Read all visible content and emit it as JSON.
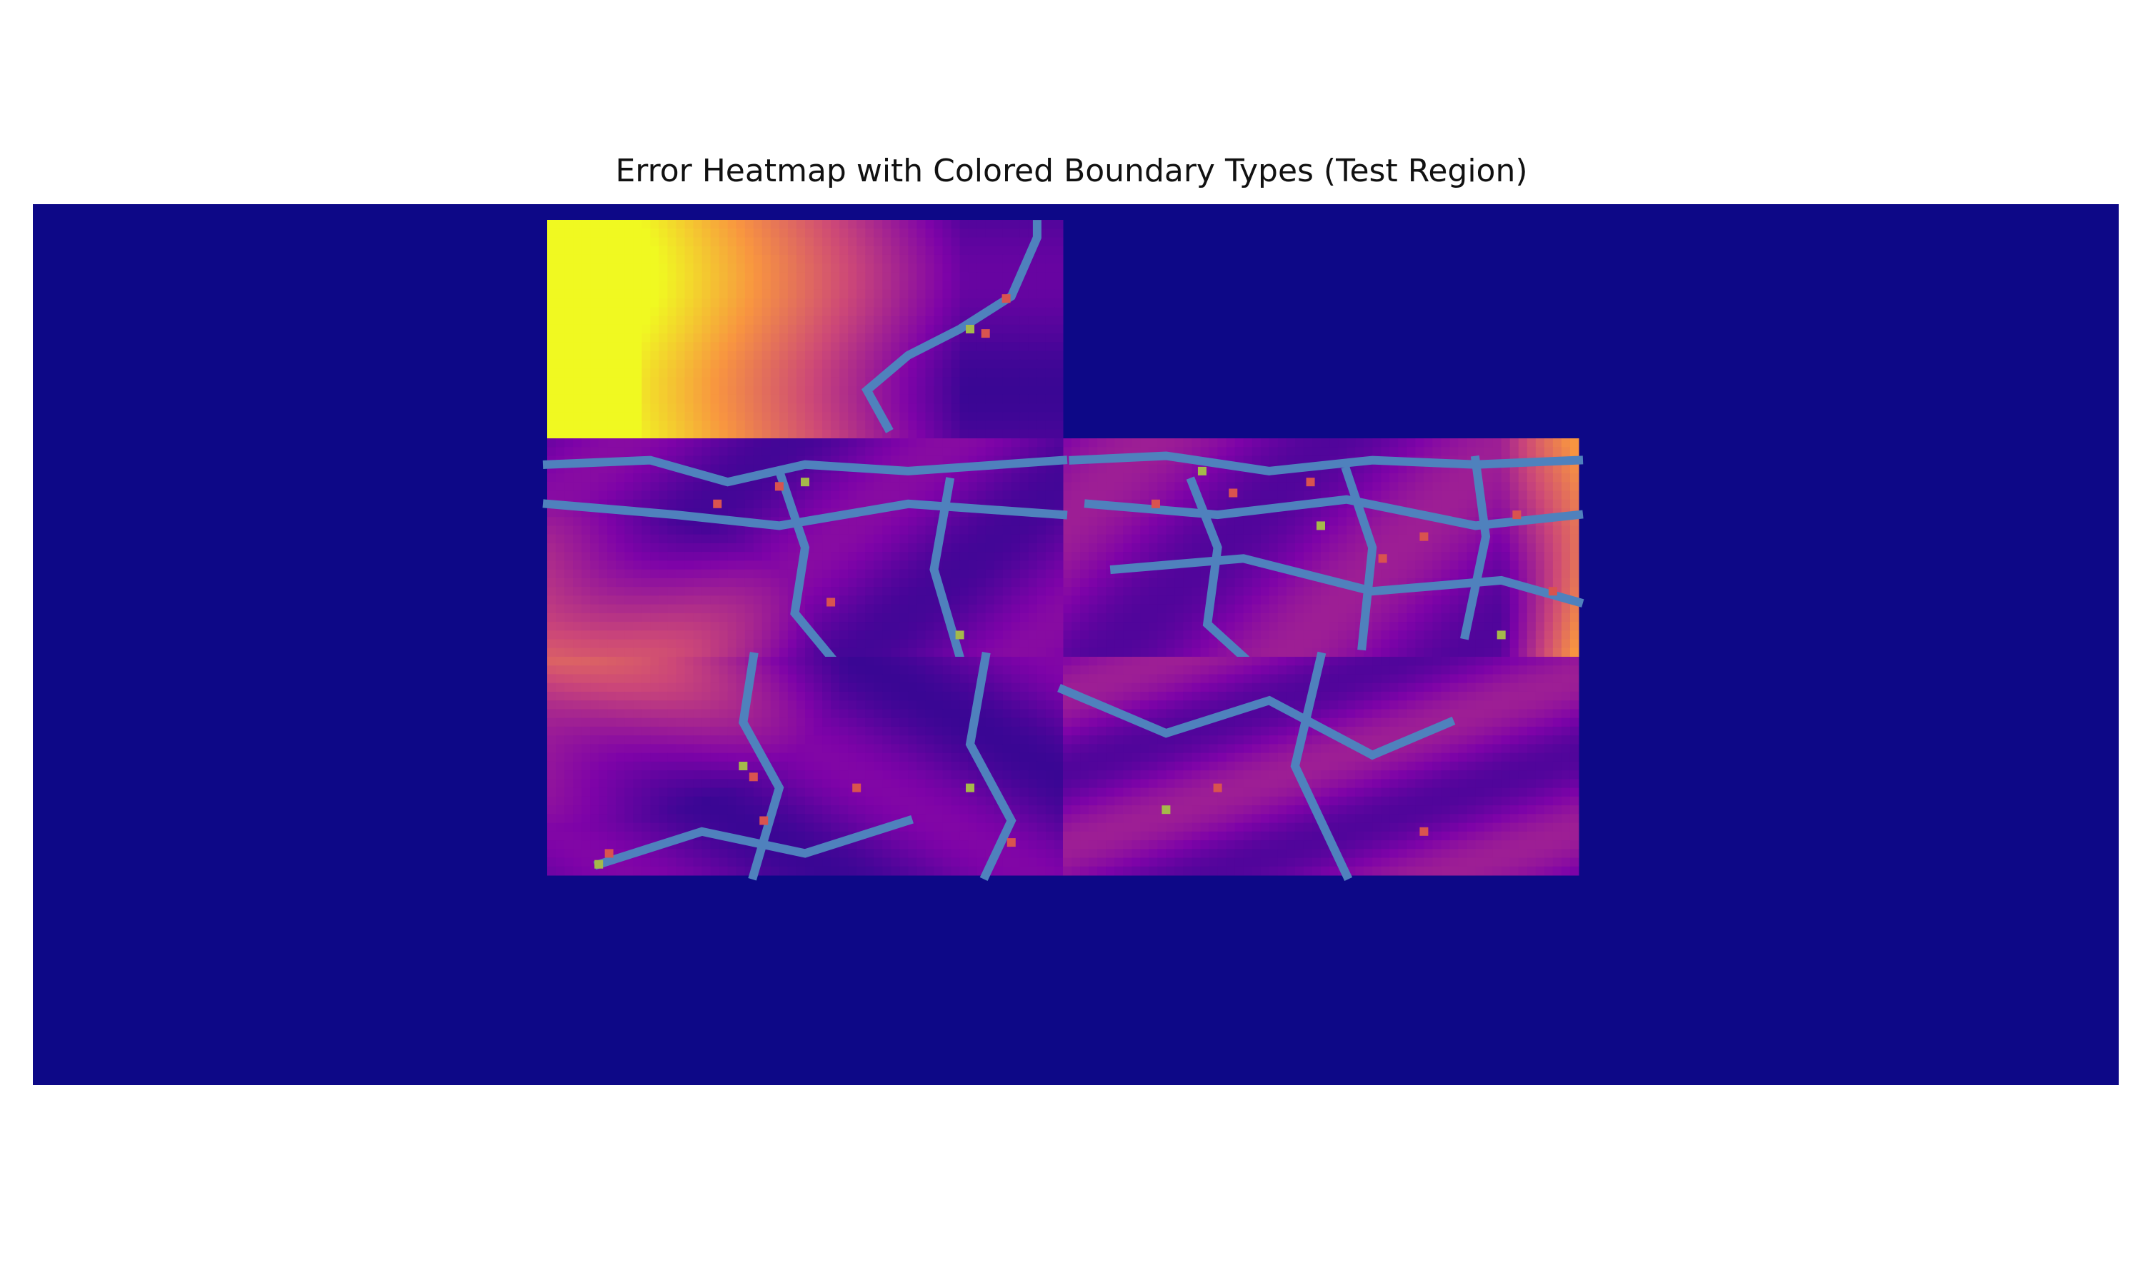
{
  "chart_data": {
    "type": "heatmap",
    "title": "Error Heatmap with Colored Boundary Types (Test Region)",
    "colormap": "plasma",
    "background_color": "#0d0887",
    "boundary_colors": {
      "main": "#4f81bd",
      "red": "#d9534f",
      "green": "#a5b94a"
    },
    "axes_visible": false,
    "grid": false,
    "legend": "none",
    "tiles": [
      {
        "name": "top-tile",
        "col": 1,
        "row": 0,
        "pattern": "left-high",
        "boundary": [
          [
            0.95,
            0.02
          ],
          [
            0.95,
            0.08
          ],
          [
            0.9,
            0.35
          ],
          [
            0.8,
            0.5
          ],
          [
            0.7,
            0.62
          ],
          [
            0.62,
            0.78
          ],
          [
            0.66,
            0.95
          ]
        ],
        "red_points": [
          [
            0.89,
            0.36
          ],
          [
            0.85,
            0.52
          ]
        ],
        "green_points": [
          [
            0.82,
            0.5
          ]
        ]
      },
      {
        "name": "middle-right-tile",
        "col": 2,
        "row": 1,
        "pattern": "right-high",
        "boundaries": [
          [
            [
              0.02,
              0.1
            ],
            [
              0.2,
              0.08
            ],
            [
              0.4,
              0.15
            ],
            [
              0.6,
              0.1
            ],
            [
              0.8,
              0.12
            ],
            [
              1.0,
              0.1
            ]
          ],
          [
            [
              0.05,
              0.3
            ],
            [
              0.3,
              0.35
            ],
            [
              0.55,
              0.28
            ],
            [
              0.8,
              0.4
            ],
            [
              1.0,
              0.35
            ]
          ],
          [
            [
              0.1,
              0.6
            ],
            [
              0.35,
              0.55
            ],
            [
              0.6,
              0.7
            ],
            [
              0.85,
              0.65
            ],
            [
              1.0,
              0.75
            ]
          ],
          [
            [
              0.25,
              0.2
            ],
            [
              0.3,
              0.5
            ],
            [
              0.28,
              0.85
            ],
            [
              0.35,
              1.0
            ]
          ],
          [
            [
              0.55,
              0.15
            ],
            [
              0.6,
              0.5
            ],
            [
              0.58,
              0.95
            ]
          ],
          [
            [
              0.8,
              0.1
            ],
            [
              0.82,
              0.45
            ],
            [
              0.78,
              0.9
            ]
          ]
        ],
        "red_points": [
          [
            0.18,
            0.3
          ],
          [
            0.33,
            0.25
          ],
          [
            0.48,
            0.2
          ],
          [
            0.62,
            0.55
          ],
          [
            0.7,
            0.45
          ],
          [
            0.88,
            0.35
          ],
          [
            0.95,
            0.7
          ]
        ],
        "green_points": [
          [
            0.27,
            0.15
          ],
          [
            0.5,
            0.4
          ],
          [
            0.85,
            0.9
          ]
        ]
      },
      {
        "name": "middle-left-tile",
        "col": 1,
        "row": 1,
        "pattern": "corner-high-bottom-left",
        "boundaries": [
          [
            [
              0.0,
              0.12
            ],
            [
              0.2,
              0.1
            ],
            [
              0.35,
              0.2
            ],
            [
              0.5,
              0.12
            ],
            [
              0.7,
              0.15
            ],
            [
              1.0,
              0.1
            ]
          ],
          [
            [
              0.0,
              0.3
            ],
            [
              0.25,
              0.35
            ],
            [
              0.45,
              0.4
            ],
            [
              0.7,
              0.3
            ],
            [
              1.0,
              0.35
            ]
          ],
          [
            [
              0.45,
              0.15
            ],
            [
              0.5,
              0.5
            ],
            [
              0.48,
              0.8
            ],
            [
              0.55,
              1.0
            ]
          ],
          [
            [
              0.78,
              0.2
            ],
            [
              0.75,
              0.6
            ],
            [
              0.8,
              1.0
            ]
          ]
        ],
        "red_points": [
          [
            0.33,
            0.3
          ],
          [
            0.45,
            0.22
          ],
          [
            0.55,
            0.75
          ]
        ],
        "green_points": [
          [
            0.5,
            0.2
          ],
          [
            0.8,
            0.9
          ]
        ]
      },
      {
        "name": "bottom-tile",
        "col": 1,
        "row": 2,
        "pattern": "corner-high-top-left",
        "boundaries": [
          [
            [
              0.4,
              0.0
            ],
            [
              0.38,
              0.3
            ],
            [
              0.45,
              0.6
            ],
            [
              0.4,
              1.0
            ]
          ],
          [
            [
              0.85,
              0.0
            ],
            [
              0.82,
              0.4
            ],
            [
              0.9,
              0.75
            ],
            [
              0.85,
              1.0
            ]
          ],
          [
            [
              0.1,
              0.95
            ],
            [
              0.3,
              0.8
            ],
            [
              0.5,
              0.9
            ],
            [
              0.7,
              0.75
            ]
          ]
        ],
        "red_points": [
          [
            0.4,
            0.55
          ],
          [
            0.42,
            0.75
          ],
          [
            0.6,
            0.6
          ],
          [
            0.9,
            0.85
          ],
          [
            0.12,
            0.9
          ]
        ],
        "green_points": [
          [
            0.38,
            0.5
          ],
          [
            0.82,
            0.6
          ],
          [
            0.1,
            0.95
          ]
        ]
      },
      {
        "name": "bottom-right-tile",
        "col": 2,
        "row": 2,
        "pattern": "mixed-low",
        "boundaries": [
          [
            [
              0.0,
              0.15
            ],
            [
              0.2,
              0.35
            ],
            [
              0.4,
              0.2
            ],
            [
              0.6,
              0.45
            ],
            [
              0.75,
              0.3
            ]
          ],
          [
            [
              0.5,
              0.0
            ],
            [
              0.45,
              0.5
            ],
            [
              0.55,
              1.0
            ]
          ]
        ],
        "red_points": [
          [
            0.3,
            0.6
          ],
          [
            0.7,
            0.8
          ]
        ],
        "green_points": [
          [
            0.2,
            0.7
          ]
        ]
      }
    ]
  }
}
